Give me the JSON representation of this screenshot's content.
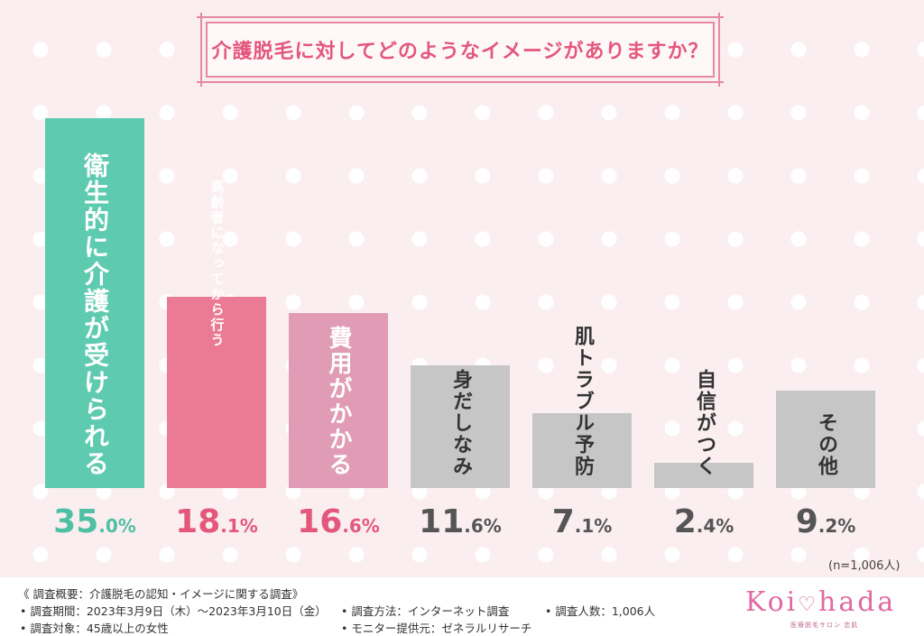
{
  "title": "介護脱毛に対してどのようなイメージがありますか？",
  "chart_data": {
    "type": "bar",
    "categories": [
      "衛生的に介護が受けられる",
      "高齢者になってから行う",
      "費用がかかる",
      "身だしなみ",
      "肌トラブル予防",
      "自信がつく",
      "その他"
    ],
    "values": [
      35.0,
      18.1,
      16.6,
      11.6,
      7.1,
      2.4,
      9.2
    ],
    "value_labels": [
      "35.0",
      "18.1",
      "16.6",
      "11.6",
      "7.1",
      "2.4",
      "9.2"
    ],
    "unit": "%",
    "colors": [
      "#5ecbb0",
      "#eb7b95",
      "#e09cb4",
      "#c6c6c6",
      "#c6c6c6",
      "#c6c6c6",
      "#c6c6c6"
    ],
    "label_colors": [
      "#ffffff",
      "#ffffff",
      "#ffffff",
      "#333333",
      "#333333",
      "#333333",
      "#333333"
    ],
    "pct_colors": [
      "#4fc0a4",
      "#e4577c",
      "#e4577c",
      "#555555",
      "#555555",
      "#555555",
      "#555555"
    ],
    "ylim": [
      0,
      35.0
    ],
    "grid": false,
    "legend": "none"
  },
  "sample_note": "(n=1,006人)",
  "footer": {
    "heading": "《 調査概要：介護脱毛の認知・イメージに関する調査》",
    "period": "• 調査期間：2023年3月9日（木）〜2023年3月10日（金）",
    "target": "• 調査対象：45歳以上の女性",
    "method": "• 調査方法：インターネット調査",
    "monitor": "• モニター提供元：ゼネラルリサーチ",
    "count": "• 調査人数：1,006人"
  },
  "logo": {
    "left": "Koi",
    "right": "hada",
    "sub": "医療脱毛サロン 恋肌"
  }
}
